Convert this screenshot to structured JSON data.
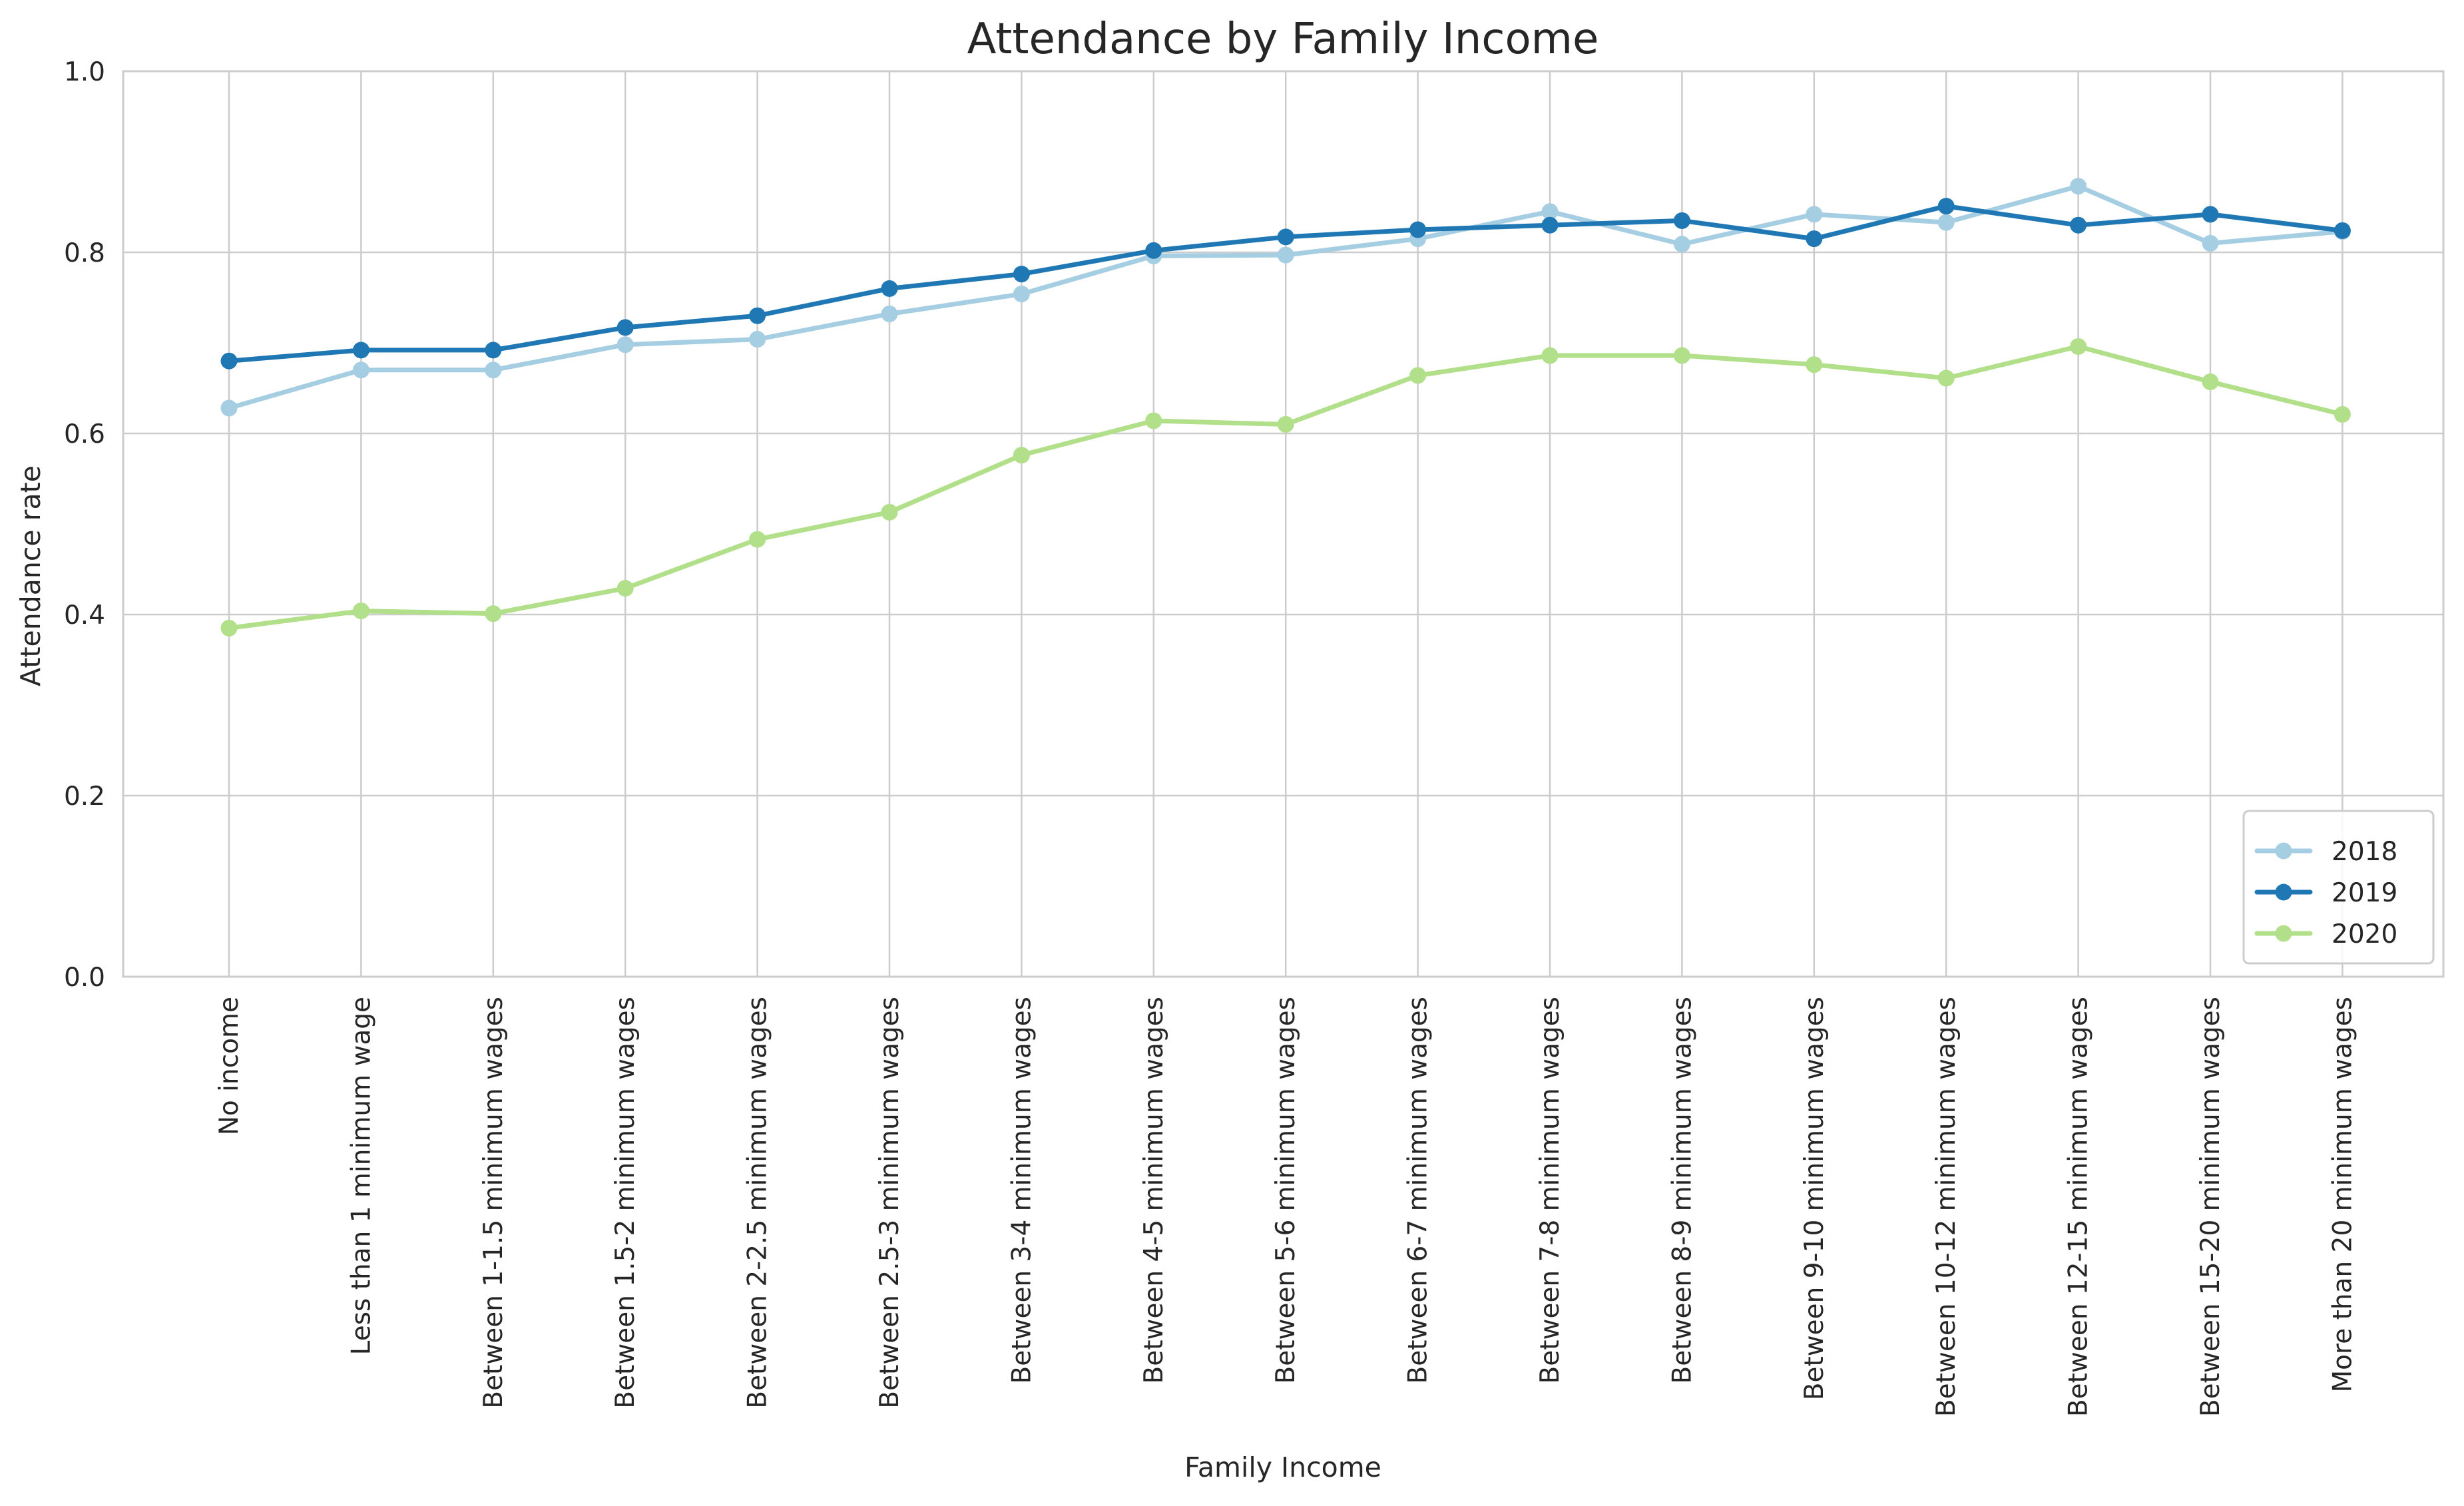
{
  "chart_data": {
    "type": "line",
    "title": "Attendance by Family Income",
    "xlabel": "Family Income",
    "ylabel": "Attendance rate",
    "ylim": [
      0,
      1
    ],
    "yticks": [
      "0.0",
      "0.2",
      "0.4",
      "0.6",
      "0.8",
      "1.0"
    ],
    "ytick_values": [
      0,
      0.2,
      0.4,
      0.6,
      0.8,
      1.0
    ],
    "grid": true,
    "legend_position": "lower-right",
    "categories": [
      "No income",
      "Less than 1 minimum wage",
      "Between 1-1.5 minimum wages",
      "Between 1.5-2 minimum wages",
      "Between 2-2.5 minimum wages",
      "Between 2.5-3 minimum wages",
      "Between 3-4 minimum wages",
      "Between 4-5 minimum wages",
      "Between 5-6 minimum wages",
      "Between 6-7 minimum wages",
      "Between 7-8 minimum wages",
      "Between 8-9 minimum wages",
      "Between 9-10 minimum wages",
      "Between 10-12 minimum wages",
      "Between 12-15 minimum wages",
      "Between 15-20 minimum wages",
      "More than 20 minimum wages"
    ],
    "series": [
      {
        "name": "2018",
        "color": "#a6cee3",
        "values": [
          0.628,
          0.67,
          0.67,
          0.698,
          0.704,
          0.732,
          0.754,
          0.796,
          0.797,
          0.815,
          0.845,
          0.809,
          0.842,
          0.833,
          0.873,
          0.81,
          0.823
        ]
      },
      {
        "name": "2019",
        "color": "#1f78b4",
        "values": [
          0.68,
          0.692,
          0.692,
          0.717,
          0.73,
          0.76,
          0.776,
          0.802,
          0.817,
          0.825,
          0.83,
          0.835,
          0.815,
          0.851,
          0.83,
          0.842,
          0.824
        ]
      },
      {
        "name": "2020",
        "color": "#b2df8a",
        "values": [
          0.385,
          0.404,
          0.401,
          0.429,
          0.483,
          0.513,
          0.576,
          0.614,
          0.61,
          0.664,
          0.686,
          0.686,
          0.676,
          0.661,
          0.696,
          0.657,
          0.621
        ]
      }
    ]
  }
}
